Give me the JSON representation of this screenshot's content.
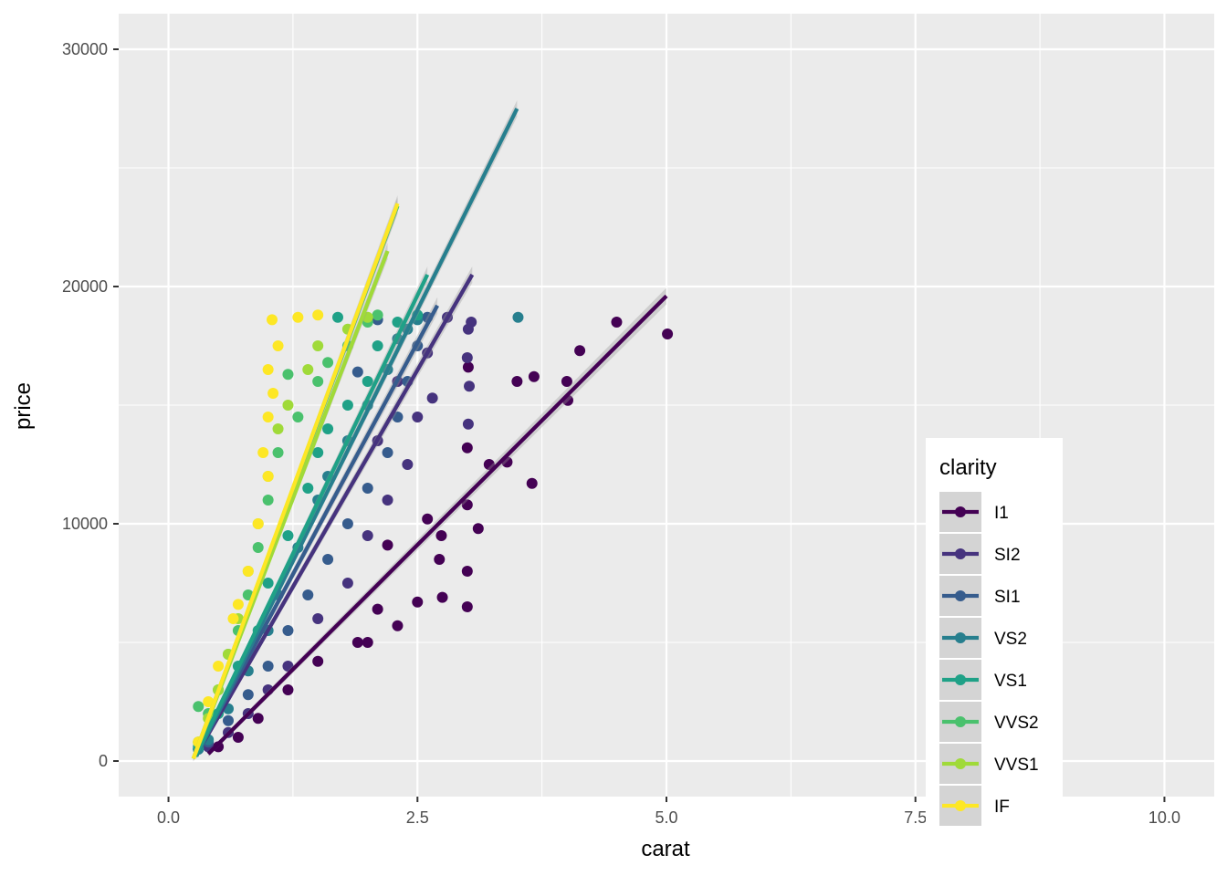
{
  "chart_data": {
    "type": "scatter",
    "xlabel": "carat",
    "ylabel": "price",
    "xlim": [
      -0.5,
      10.5
    ],
    "ylim": [
      -1500,
      31500
    ],
    "x_ticks": [
      0.0,
      2.5,
      5.0,
      7.5,
      10.0
    ],
    "x_tick_labels": [
      "0.0",
      "2.5",
      "5.0",
      "7.5",
      "10.0"
    ],
    "y_ticks": [
      0,
      10000,
      20000,
      30000
    ],
    "y_tick_labels": [
      "0",
      "10000",
      "20000",
      "30000"
    ],
    "grid": true,
    "legend": {
      "title": "clarity",
      "placement": "inside-bottom-right",
      "entries": [
        "I1",
        "SI2",
        "SI1",
        "VS2",
        "VS1",
        "VVS2",
        "VVS1",
        "IF"
      ]
    },
    "series": [
      {
        "name": "I1",
        "color": "#440154",
        "fit": {
          "x": [
            0.4,
            5.0
          ],
          "y": [
            300,
            19600
          ]
        },
        "points": [
          [
            5.01,
            18000
          ],
          [
            4.5,
            18500
          ],
          [
            4.13,
            17300
          ],
          [
            4.0,
            16000
          ],
          [
            4.01,
            15200
          ],
          [
            3.67,
            16200
          ],
          [
            3.5,
            16000
          ],
          [
            3.65,
            11700
          ],
          [
            3.4,
            12600
          ],
          [
            3.22,
            12500
          ],
          [
            3.01,
            16600
          ],
          [
            3.0,
            10800
          ],
          [
            3.11,
            9800
          ],
          [
            3.0,
            8000
          ],
          [
            3.0,
            6500
          ],
          [
            2.74,
            9500
          ],
          [
            2.72,
            8500
          ],
          [
            2.75,
            6900
          ],
          [
            2.5,
            6700
          ],
          [
            2.3,
            5700
          ],
          [
            2.0,
            5000
          ],
          [
            1.9,
            5000
          ],
          [
            1.5,
            4200
          ],
          [
            1.2,
            3000
          ],
          [
            0.9,
            1800
          ],
          [
            0.7,
            1000
          ],
          [
            0.5,
            600
          ],
          [
            2.2,
            9100
          ],
          [
            2.6,
            10200
          ],
          [
            3.0,
            13200
          ],
          [
            2.1,
            6400
          ]
        ]
      },
      {
        "name": "SI2",
        "color": "#46337E",
        "fit": {
          "x": [
            0.3,
            3.05
          ],
          "y": [
            400,
            20500
          ]
        },
        "points": [
          [
            3.04,
            18500
          ],
          [
            3.01,
            18200
          ],
          [
            3.0,
            17000
          ],
          [
            3.02,
            15800
          ],
          [
            3.01,
            14200
          ],
          [
            2.8,
            18700
          ],
          [
            2.6,
            17200
          ],
          [
            2.65,
            15300
          ],
          [
            2.5,
            14500
          ],
          [
            2.4,
            12500
          ],
          [
            2.2,
            11000
          ],
          [
            2.0,
            9500
          ],
          [
            1.8,
            7500
          ],
          [
            1.5,
            6000
          ],
          [
            1.2,
            4000
          ],
          [
            1.0,
            3000
          ],
          [
            0.8,
            2000
          ],
          [
            0.6,
            1200
          ],
          [
            0.4,
            600
          ],
          [
            2.3,
            16000
          ],
          [
            2.1,
            13500
          ]
        ]
      },
      {
        "name": "SI1",
        "color": "#365C8D",
        "fit": {
          "x": [
            0.28,
            2.7
          ],
          "y": [
            300,
            19200
          ]
        },
        "points": [
          [
            2.6,
            18700
          ],
          [
            2.5,
            17500
          ],
          [
            2.4,
            16000
          ],
          [
            2.3,
            14500
          ],
          [
            2.2,
            13000
          ],
          [
            2.0,
            11500
          ],
          [
            1.8,
            10000
          ],
          [
            1.6,
            8500
          ],
          [
            1.4,
            7000
          ],
          [
            1.2,
            5500
          ],
          [
            1.0,
            4000
          ],
          [
            0.8,
            2800
          ],
          [
            0.6,
            1700
          ],
          [
            0.4,
            800
          ],
          [
            0.3,
            500
          ],
          [
            2.1,
            18600
          ],
          [
            1.9,
            16400
          ]
        ]
      },
      {
        "name": "VS2",
        "color": "#277F8E",
        "fit": {
          "x": [
            0.28,
            3.5
          ],
          "y": [
            200,
            27500
          ]
        },
        "points": [
          [
            3.51,
            18700
          ],
          [
            2.5,
            18600
          ],
          [
            2.3,
            17800
          ],
          [
            2.2,
            16500
          ],
          [
            2.0,
            15000
          ],
          [
            1.8,
            13500
          ],
          [
            1.6,
            12000
          ],
          [
            1.5,
            11000
          ],
          [
            1.3,
            9000
          ],
          [
            1.1,
            7000
          ],
          [
            1.0,
            5500
          ],
          [
            0.8,
            3800
          ],
          [
            0.6,
            2200
          ],
          [
            0.4,
            900
          ],
          [
            0.3,
            500
          ],
          [
            2.4,
            18200
          ]
        ]
      },
      {
        "name": "VS1",
        "color": "#1FA187",
        "fit": {
          "x": [
            0.27,
            2.6
          ],
          "y": [
            200,
            20500
          ]
        },
        "points": [
          [
            2.5,
            18800
          ],
          [
            2.3,
            18500
          ],
          [
            2.1,
            17500
          ],
          [
            2.0,
            16000
          ],
          [
            1.8,
            15000
          ],
          [
            1.6,
            14000
          ],
          [
            1.5,
            13000
          ],
          [
            1.4,
            11500
          ],
          [
            1.2,
            9500
          ],
          [
            1.0,
            7500
          ],
          [
            0.9,
            5500
          ],
          [
            0.7,
            4000
          ],
          [
            0.5,
            2000
          ],
          [
            0.3,
            600
          ],
          [
            1.7,
            18700
          ]
        ]
      },
      {
        "name": "VVS2",
        "color": "#4AC16D",
        "fit": {
          "x": [
            0.25,
            2.3
          ],
          "y": [
            100,
            23400
          ]
        },
        "points": [
          [
            2.1,
            18800
          ],
          [
            2.0,
            18500
          ],
          [
            1.8,
            17500
          ],
          [
            1.6,
            16800
          ],
          [
            1.5,
            16000
          ],
          [
            1.3,
            14500
          ],
          [
            1.2,
            16300
          ],
          [
            1.1,
            13000
          ],
          [
            1.0,
            11000
          ],
          [
            0.9,
            9000
          ],
          [
            0.8,
            7000
          ],
          [
            0.7,
            5500
          ],
          [
            0.6,
            4500
          ],
          [
            0.5,
            3000
          ],
          [
            0.4,
            2000
          ],
          [
            0.3,
            2300
          ],
          [
            0.3,
            800
          ]
        ]
      },
      {
        "name": "VVS1",
        "color": "#A0DA39",
        "fit": {
          "x": [
            0.25,
            2.2
          ],
          "y": [
            100,
            21500
          ]
        },
        "points": [
          [
            2.0,
            18700
          ],
          [
            1.8,
            18200
          ],
          [
            1.5,
            17500
          ],
          [
            1.4,
            16500
          ],
          [
            1.2,
            15000
          ],
          [
            1.1,
            14000
          ],
          [
            1.0,
            12000
          ],
          [
            0.9,
            10000
          ],
          [
            0.8,
            8000
          ],
          [
            0.7,
            6000
          ],
          [
            0.6,
            4500
          ],
          [
            0.5,
            3000
          ],
          [
            0.4,
            1800
          ],
          [
            0.3,
            800
          ]
        ]
      },
      {
        "name": "IF",
        "color": "#FDE725",
        "fit": {
          "x": [
            0.25,
            2.3
          ],
          "y": [
            100,
            23500
          ]
        },
        "points": [
          [
            1.5,
            18800
          ],
          [
            1.3,
            18700
          ],
          [
            1.04,
            18600
          ],
          [
            1.1,
            17500
          ],
          [
            1.0,
            16500
          ],
          [
            1.05,
            15500
          ],
          [
            1.0,
            14500
          ],
          [
            0.95,
            13000
          ],
          [
            1.0,
            12000
          ],
          [
            0.9,
            10000
          ],
          [
            0.8,
            8000
          ],
          [
            0.7,
            6600
          ],
          [
            0.65,
            6000
          ],
          [
            0.5,
            4000
          ],
          [
            0.4,
            2500
          ],
          [
            0.3,
            800
          ]
        ]
      }
    ]
  }
}
